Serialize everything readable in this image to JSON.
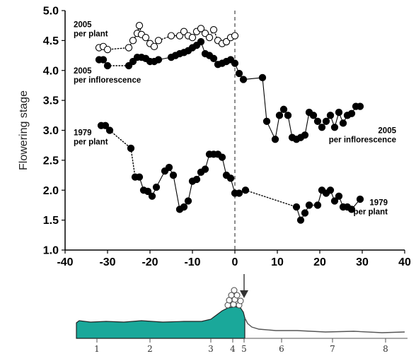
{
  "chart_data": {
    "type": "scatter",
    "xlim": [
      -40,
      40
    ],
    "ylim": [
      1.0,
      5.0
    ],
    "xticks": [
      -40,
      -30,
      -20,
      -10,
      0,
      10,
      20,
      30,
      40
    ],
    "yticks": [
      "1.0",
      "1.5",
      "2.0",
      "2.5",
      "3.0",
      "3.5",
      "4.0",
      "4.5",
      "5.0"
    ],
    "ylabel": "Flowering stage",
    "xlabel": "",
    "reference_line_x": 0,
    "annotations": [
      {
        "lines": [
          "2005",
          "per plant"
        ],
        "x": -38,
        "y": 4.72,
        "anchor": "start"
      },
      {
        "lines": [
          "2005",
          "per inflorescence"
        ],
        "x": -38,
        "y": 3.95,
        "anchor": "start"
      },
      {
        "lines": [
          "1979",
          "per plant"
        ],
        "x": -38,
        "y": 2.92,
        "anchor": "start"
      },
      {
        "lines": [
          "2005",
          "per inflorescence"
        ],
        "x": 38,
        "y": 2.95,
        "anchor": "end"
      },
      {
        "lines": [
          "1979",
          "per plant"
        ],
        "x": 36,
        "y": 1.75,
        "anchor": "end"
      }
    ],
    "series": [
      {
        "marker": "open",
        "points": [
          [
            -32,
            4.38
          ],
          [
            -31,
            4.4
          ],
          [
            -30,
            4.35
          ],
          [
            -25,
            4.38
          ],
          [
            -24,
            4.5
          ],
          [
            -23,
            4.62
          ],
          [
            -22.5,
            4.75
          ],
          [
            -22,
            4.6
          ],
          [
            -21,
            4.55
          ],
          [
            -20,
            4.45
          ],
          [
            -19,
            4.4
          ],
          [
            -18,
            4.5
          ],
          [
            -15,
            4.58
          ],
          [
            -13,
            4.58
          ],
          [
            -12,
            4.65
          ],
          [
            -11,
            4.58
          ],
          [
            -10,
            4.55
          ],
          [
            -9,
            4.65
          ],
          [
            -8,
            4.7
          ],
          [
            -7,
            4.62
          ],
          [
            -6,
            4.55
          ],
          [
            -5,
            4.68
          ],
          [
            -4,
            4.5
          ],
          [
            -3,
            4.45
          ],
          [
            -2,
            4.48
          ],
          [
            -1,
            4.55
          ],
          [
            0,
            4.58
          ]
        ]
      },
      {
        "marker": "filled",
        "points": [
          [
            -32,
            4.18
          ],
          [
            -31,
            4.18
          ],
          [
            -30,
            4.08
          ],
          [
            -25,
            4.08
          ],
          [
            -24,
            4.15
          ],
          [
            -23,
            4.22
          ],
          [
            -22,
            4.22
          ],
          [
            -21,
            4.2
          ],
          [
            -20,
            4.15
          ],
          [
            -19,
            4.15
          ],
          [
            -18,
            4.18
          ],
          [
            -15,
            4.22
          ],
          [
            -14,
            4.25
          ],
          [
            -13,
            4.28
          ],
          [
            -12,
            4.3
          ],
          [
            -11,
            4.33
          ],
          [
            -10,
            4.38
          ],
          [
            -9,
            4.42
          ],
          [
            -8,
            4.48
          ],
          [
            -7,
            4.28
          ],
          [
            -6,
            4.25
          ],
          [
            -5,
            4.2
          ],
          [
            -4,
            4.1
          ],
          [
            -3,
            4.12
          ],
          [
            -2,
            4.15
          ],
          [
            -1,
            4.18
          ],
          [
            0,
            4.12
          ],
          [
            1,
            3.95
          ],
          [
            2,
            3.85
          ],
          [
            6.5,
            3.88
          ],
          [
            7.5,
            3.15
          ],
          [
            9.5,
            2.85
          ],
          [
            10.5,
            3.25
          ],
          [
            11.5,
            3.35
          ],
          [
            12.5,
            3.25
          ],
          [
            13.5,
            2.88
          ],
          [
            14.5,
            2.85
          ],
          [
            15.5,
            2.88
          ],
          [
            16.5,
            2.92
          ],
          [
            17.5,
            3.3
          ],
          [
            18.5,
            3.25
          ],
          [
            19.5,
            3.15
          ],
          [
            20.5,
            3.05
          ],
          [
            21.5,
            3.15
          ],
          [
            22.5,
            3.25
          ],
          [
            23.5,
            3.05
          ],
          [
            24.5,
            3.3
          ],
          [
            25.5,
            3.12
          ],
          [
            26.5,
            3.25
          ],
          [
            27.5,
            3.28
          ],
          [
            28.5,
            3.4
          ],
          [
            29.5,
            3.4
          ]
        ]
      },
      {
        "marker": "filled",
        "points": [
          [
            -31.5,
            3.08
          ],
          [
            -30.5,
            3.08
          ],
          [
            -29.5,
            3.0
          ],
          [
            -24.5,
            2.7
          ],
          [
            -23.5,
            2.22
          ],
          [
            -22.5,
            2.22
          ],
          [
            -21.5,
            2.0
          ],
          [
            -20.5,
            1.98
          ],
          [
            -19.5,
            1.9
          ],
          [
            -18.5,
            2.05
          ],
          [
            -16.5,
            2.32
          ],
          [
            -15.5,
            2.38
          ],
          [
            -14.5,
            2.25
          ],
          [
            -13,
            1.68
          ],
          [
            -12,
            1.72
          ],
          [
            -11,
            1.82
          ],
          [
            -10,
            2.15
          ],
          [
            -9,
            2.18
          ],
          [
            -8,
            2.3
          ],
          [
            -7,
            2.35
          ],
          [
            -6,
            2.6
          ],
          [
            -5,
            2.6
          ],
          [
            -4,
            2.6
          ],
          [
            -3,
            2.55
          ],
          [
            -2,
            2.25
          ],
          [
            -1,
            2.2
          ],
          [
            0,
            1.95
          ],
          [
            1,
            1.95
          ],
          [
            2.5,
            2.0
          ],
          [
            14.5,
            1.72
          ],
          [
            15.5,
            1.5
          ],
          [
            16.5,
            1.62
          ],
          [
            17.5,
            1.75
          ],
          [
            19.5,
            1.75
          ],
          [
            20.5,
            2.0
          ],
          [
            21.5,
            1.95
          ],
          [
            22.5,
            2.0
          ],
          [
            23.5,
            1.82
          ],
          [
            24.5,
            1.9
          ],
          [
            25.5,
            1.72
          ],
          [
            26.5,
            1.72
          ],
          [
            27.5,
            1.68
          ],
          [
            29.5,
            1.85
          ]
        ]
      }
    ],
    "connectors": [
      {
        "series": 0,
        "style": "dotted",
        "ranges": [
          [
            0,
            26
          ]
        ]
      },
      {
        "series": 1,
        "style": "solid",
        "ranges": [
          [
            0,
            2
          ],
          [
            3,
            17
          ],
          [
            17,
            51
          ]
        ]
      },
      {
        "series": 1,
        "style": "dotted",
        "ranges": [
          [
            2,
            3
          ],
          [
            17,
            18
          ]
        ]
      },
      {
        "series": 2,
        "style": "solid",
        "ranges": [
          [
            0,
            2
          ],
          [
            4,
            28
          ],
          [
            29,
            42
          ]
        ]
      },
      {
        "series": 2,
        "style": "dotted",
        "ranges": [
          [
            2,
            4
          ],
          [
            28,
            29
          ]
        ]
      }
    ],
    "stage_diagram": {
      "fill_color": "#1aa89a",
      "stage_labels": [
        "1",
        "2",
        "3",
        "4",
        "5",
        "6",
        "7",
        "8"
      ]
    }
  }
}
